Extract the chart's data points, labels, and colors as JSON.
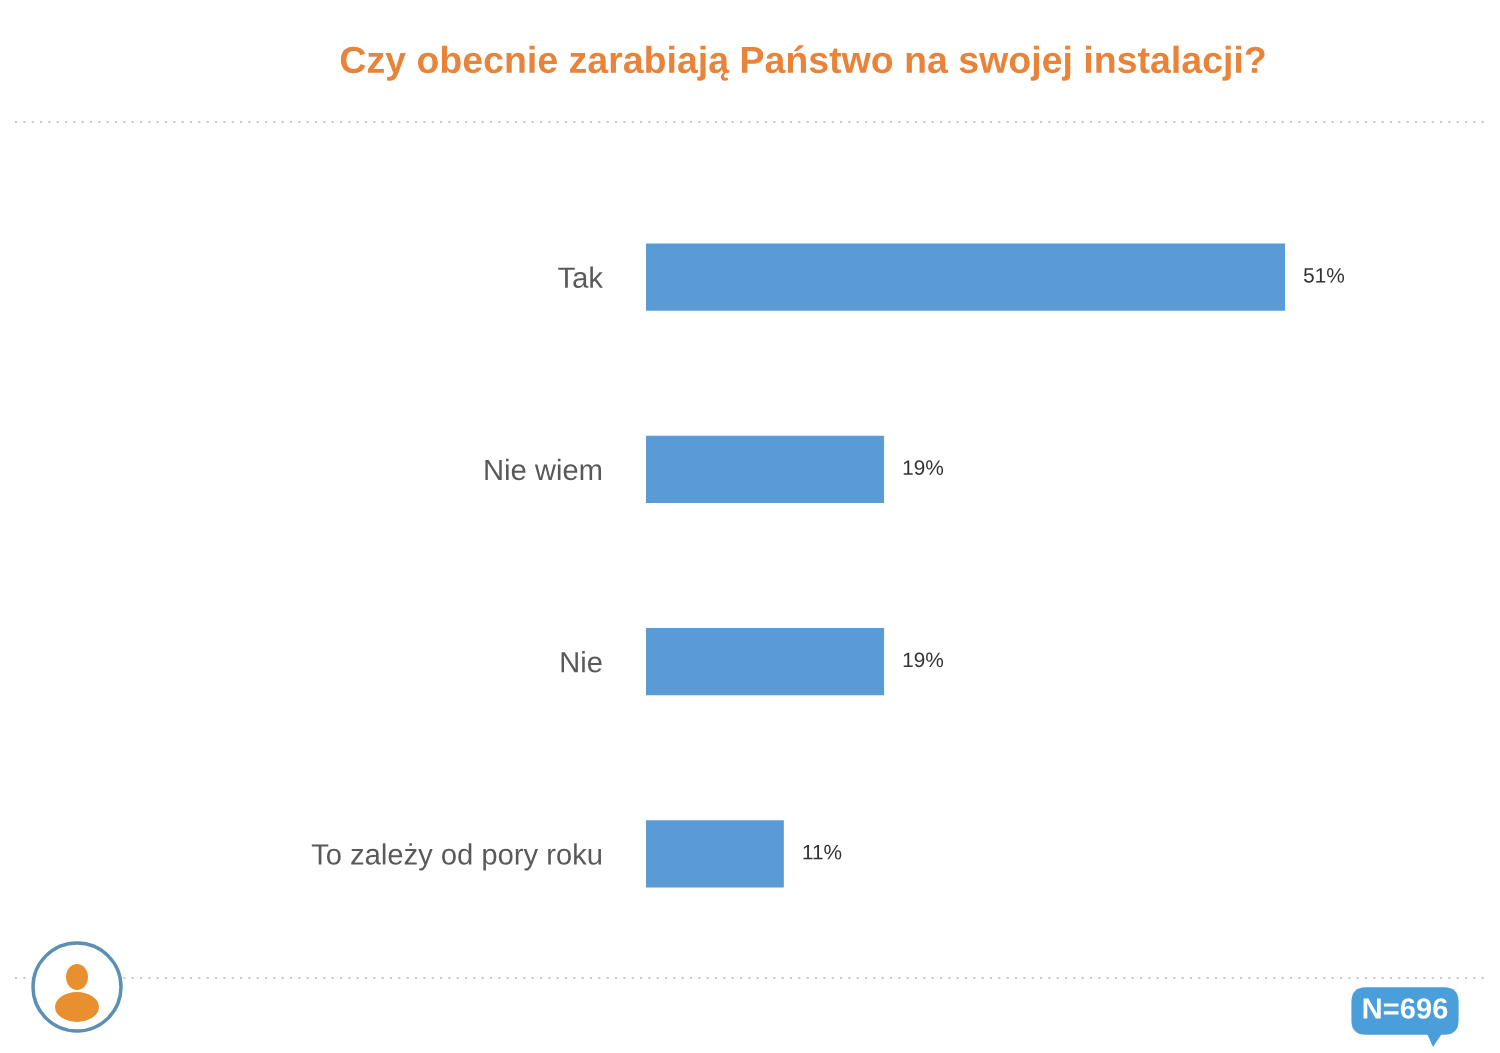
{
  "chart_data": {
    "type": "bar",
    "orientation": "horizontal",
    "title": "Czy obecnie zarabiają Państwo na swojej instalacji?",
    "categories": [
      "Tak",
      "Nie wiem",
      "Nie",
      "To zależy od pory roku"
    ],
    "values": [
      51,
      19,
      19,
      11
    ],
    "color": "#5b9bd5",
    "value_labels": [
      "51%",
      "19%",
      "19%",
      "11%"
    ],
    "tick_labels": "y",
    "annotations": [
      "N=696"
    ]
  }
}
